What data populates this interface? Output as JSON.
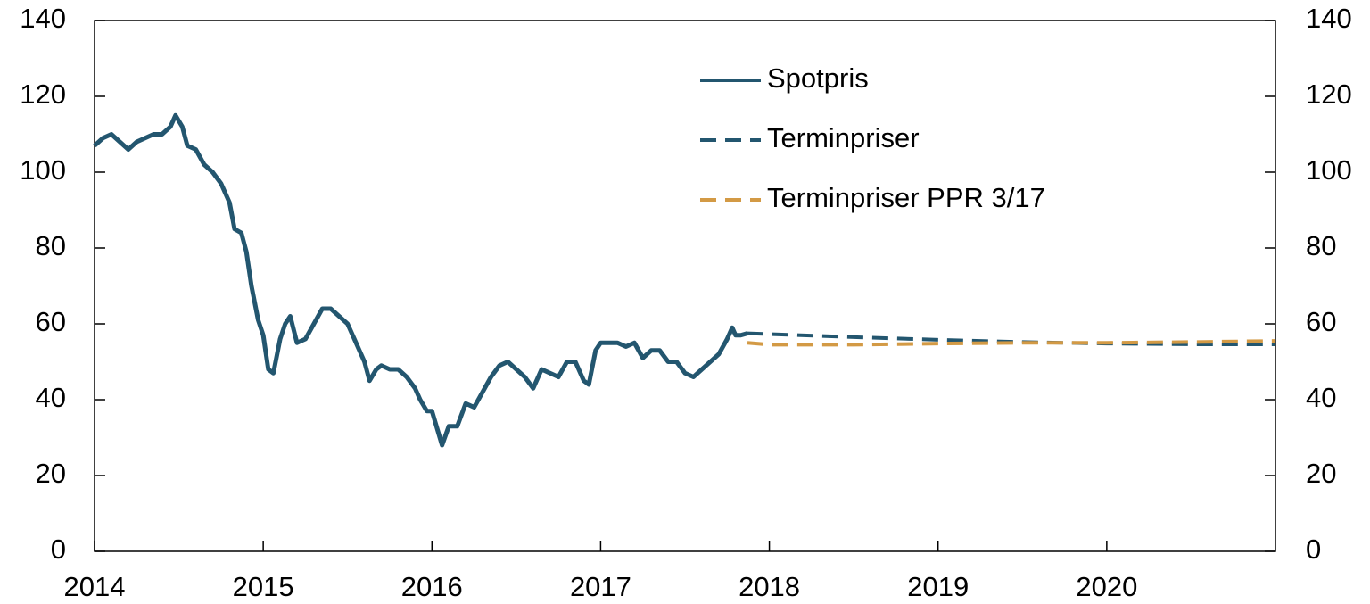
{
  "chart_data": {
    "type": "line",
    "xlim": [
      2014,
      2021
    ],
    "xticks": [
      2014,
      2015,
      2016,
      2017,
      2018,
      2019,
      2020
    ],
    "ylim": [
      0,
      140
    ],
    "yticks": [
      0,
      20,
      40,
      60,
      80,
      100,
      120,
      140
    ],
    "y2lim": [
      0,
      140
    ],
    "y2ticks": [
      0,
      20,
      40,
      60,
      80,
      100,
      120,
      140
    ],
    "legend": "top",
    "series": [
      {
        "name": "Spotpris",
        "color": "#23566f",
        "dashed": false,
        "x": [
          2014.0,
          2014.05,
          2014.1,
          2014.15,
          2014.2,
          2014.25,
          2014.3,
          2014.35,
          2014.4,
          2014.45,
          2014.48,
          2014.52,
          2014.55,
          2014.6,
          2014.65,
          2014.7,
          2014.75,
          2014.8,
          2014.83,
          2014.87,
          2014.9,
          2014.93,
          2014.97,
          2015.0,
          2015.03,
          2015.06,
          2015.1,
          2015.13,
          2015.16,
          2015.2,
          2015.25,
          2015.3,
          2015.35,
          2015.4,
          2015.45,
          2015.5,
          2015.55,
          2015.6,
          2015.63,
          2015.67,
          2015.7,
          2015.75,
          2015.8,
          2015.85,
          2015.9,
          2015.93,
          2015.97,
          2016.0,
          2016.04,
          2016.06,
          2016.1,
          2016.15,
          2016.2,
          2016.25,
          2016.3,
          2016.35,
          2016.4,
          2016.45,
          2016.5,
          2016.55,
          2016.6,
          2016.65,
          2016.7,
          2016.75,
          2016.8,
          2016.85,
          2016.9,
          2016.93,
          2016.97,
          2017.0,
          2017.05,
          2017.1,
          2017.15,
          2017.2,
          2017.25,
          2017.3,
          2017.35,
          2017.4,
          2017.45,
          2017.5,
          2017.55,
          2017.6,
          2017.65,
          2017.7,
          2017.75,
          2017.78,
          2017.8,
          2017.83,
          2017.87
        ],
        "values": [
          107,
          109,
          110,
          108,
          106,
          108,
          109,
          110,
          110,
          112,
          115,
          112,
          107,
          106,
          102,
          100,
          97,
          92,
          85,
          84,
          79,
          70,
          61,
          57,
          48,
          47,
          56,
          60,
          62,
          55,
          56,
          60,
          64,
          64,
          62,
          60,
          55,
          50,
          45,
          48,
          49,
          48,
          48,
          46,
          43,
          40,
          37,
          37,
          31,
          28,
          33,
          33,
          39,
          38,
          42,
          46,
          49,
          50,
          48,
          46,
          43,
          48,
          47,
          46,
          50,
          50,
          45,
          44,
          53,
          55,
          55,
          55,
          54,
          55,
          51,
          53,
          53,
          50,
          50,
          47,
          46,
          48,
          50,
          52,
          56,
          59,
          57,
          57,
          57.5
        ]
      },
      {
        "name": "Terminpriser",
        "color": "#23566f",
        "dashed": true,
        "x": [
          2017.87,
          2018.0,
          2018.5,
          2019.0,
          2019.5,
          2020.0,
          2020.5,
          2021.0
        ],
        "values": [
          57.5,
          57.3,
          56.5,
          55.8,
          55.2,
          54.8,
          54.6,
          54.6
        ]
      },
      {
        "name": "Terminpriser PPR 3/17",
        "color": "#d39a45",
        "dashed": true,
        "x": [
          2017.87,
          2018.0,
          2018.5,
          2019.0,
          2019.5,
          2020.0,
          2020.5,
          2021.0
        ],
        "values": [
          55,
          54.5,
          54.5,
          54.8,
          55,
          55,
          55.2,
          55.5
        ]
      }
    ]
  }
}
